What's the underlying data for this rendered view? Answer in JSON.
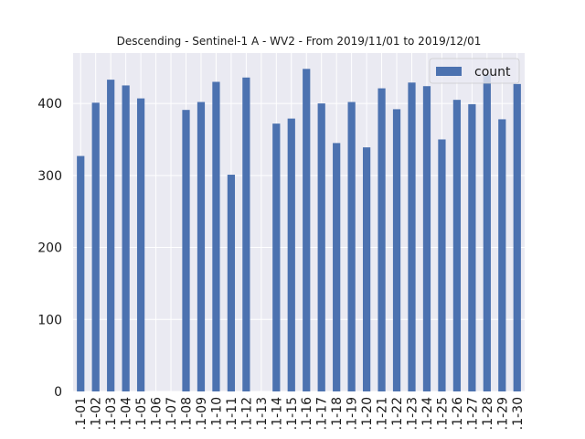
{
  "chart_data": {
    "type": "bar",
    "title": "Descending - Sentinel-1 A - WV2 - From 2019/11/01 to 2019/12/01",
    "xlabel": "",
    "ylabel": "",
    "categories": [
      ".1-01",
      ".1-02",
      ".1-03",
      ".1-04",
      ".1-05",
      ".1-06",
      ".1-07",
      ".1-08",
      ".1-09",
      ".1-10",
      ".1-11",
      ".1-12",
      ".1-13",
      ".1-14",
      ".1-15",
      ".1-16",
      ".1-17",
      ".1-18",
      ".1-19",
      ".1-20",
      ".1-21",
      ".1-22",
      ".1-23",
      ".1-24",
      ".1-25",
      ".1-26",
      ".1-27",
      ".1-28",
      ".1-29",
      ".1-30"
    ],
    "series": [
      {
        "name": "count",
        "color": "#4c72b0",
        "values": [
          327,
          401,
          433,
          425,
          407,
          0,
          0,
          391,
          402,
          430,
          301,
          436,
          0,
          372,
          379,
          448,
          400,
          345,
          402,
          339,
          421,
          392,
          429,
          424,
          350,
          405,
          399,
          440,
          378,
          427
        ]
      }
    ],
    "ylim": [
      0,
      470
    ],
    "yticks": [
      0,
      100,
      200,
      300,
      400
    ],
    "grid": true,
    "legend_position": "top-right",
    "background": "#eaeaf2"
  }
}
